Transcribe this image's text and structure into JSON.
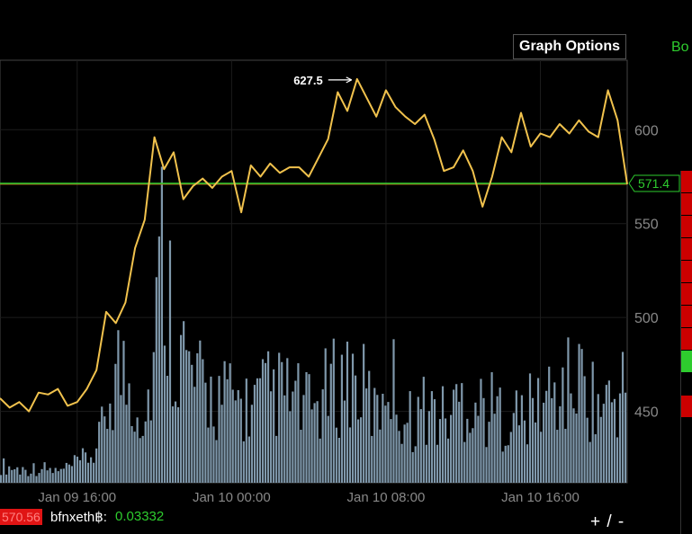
{
  "graph_options_label": "Graph Options",
  "top_right_text": "Bo",
  "ticker": {
    "last_price": "570.56",
    "symbol": "bfnxeth",
    "symbol_suffix": "฿:",
    "change": "0.03332"
  },
  "zoom_label": "+ / -",
  "colors": {
    "price": "#f1c24d",
    "volume": "#7f98ab",
    "last_line": "#2ecc2e",
    "ref_line": "#b5651d"
  },
  "right_strip": [
    "#cc0000",
    "#cc0000",
    "#cc0000",
    "#cc0000",
    "#cc0000",
    "#cc0000",
    "#cc0000",
    "#cc0000",
    "#2ecc2e",
    "#000000",
    "#cc0000",
    "#000000",
    "#000000"
  ],
  "chart_data": {
    "type": "line",
    "title": "",
    "xlabel": "",
    "ylabel": "",
    "y_ticks": [
      450,
      500,
      550,
      600
    ],
    "ylim": [
      412,
      637
    ],
    "x_ticks": [
      "Jan 09 16:00",
      "Jan 10 00:00",
      "Jan 10 08:00",
      "Jan 10 16:00"
    ],
    "max_annotation": "627.5",
    "last_price_label": "571.4",
    "grid": true,
    "price_series": {
      "x_hours": [
        0,
        0.5,
        1,
        1.5,
        2,
        2.5,
        3,
        3.5,
        4,
        4.5,
        5,
        5.5,
        6,
        6.5,
        7,
        7.5,
        8,
        8.5,
        9,
        9.5,
        10,
        10.5,
        11,
        11.5,
        12,
        12.5,
        13,
        13.5,
        14,
        14.5,
        15,
        15.5,
        16,
        16.5,
        17,
        17.5,
        18,
        18.5,
        19,
        19.5,
        20,
        20.5,
        21,
        21.5,
        22,
        22.5,
        23,
        23.5,
        24,
        24.5,
        25,
        25.5,
        26,
        26.5,
        27,
        27.5,
        28,
        28.5,
        29,
        29.5,
        30,
        30.5,
        31,
        31.5,
        32,
        32.5
      ],
      "values": [
        457,
        452,
        455,
        450,
        460,
        459,
        462,
        453,
        455,
        462,
        472,
        503,
        497,
        508,
        537,
        552,
        596,
        579,
        588,
        563,
        570,
        574,
        569,
        575,
        578,
        556,
        581,
        575,
        582,
        577,
        580,
        580,
        575,
        585,
        595,
        620,
        610,
        627,
        617,
        607,
        621,
        612,
        607,
        603,
        608,
        595,
        578,
        580,
        589,
        578,
        559,
        575,
        596,
        588,
        609,
        591,
        598,
        596,
        603,
        598,
        605,
        599,
        596,
        621,
        605,
        571
      ]
    },
    "volume_series": {
      "x_hours": [
        0,
        1,
        2,
        3,
        4,
        5,
        6,
        7,
        7.5,
        8,
        8.3,
        9,
        10,
        11,
        12,
        13,
        14,
        15,
        16,
        17,
        18,
        19,
        19.5,
        20,
        21,
        22,
        23,
        24,
        25,
        26,
        27,
        28,
        29,
        30,
        31,
        32,
        32.5
      ],
      "values": [
        8,
        6,
        7,
        5,
        9,
        15,
        55,
        40,
        30,
        65,
        110,
        70,
        45,
        40,
        38,
        35,
        42,
        40,
        33,
        42,
        50,
        40,
        30,
        55,
        28,
        35,
        30,
        40,
        35,
        32,
        30,
        38,
        42,
        48,
        35,
        40,
        50
      ]
    }
  }
}
